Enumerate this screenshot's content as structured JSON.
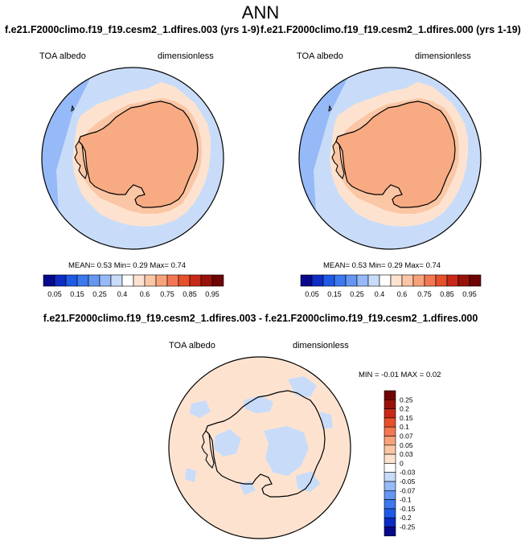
{
  "figure": {
    "title": "ANN"
  },
  "panels": [
    {
      "case_title": "f.e21.F2000climo.f19_f19.cesm2_1.dfires.003 (yrs 1-9)",
      "variable": "TOA albedo",
      "units": "dimensionless",
      "stats": {
        "mean_label": "MEAN=",
        "mean": "0.53",
        "min_label": "Min=",
        "min": "0.29",
        "max_label": "Max=",
        "max": "0.74"
      }
    },
    {
      "case_title": "f.e21.F2000climo.f19_f19.cesm2_1.dfires.000 (yrs 1-19)",
      "variable": "TOA albedo",
      "units": "dimensionless",
      "stats": {
        "mean_label": "MEAN=",
        "mean": "0.53",
        "min_label": "Min=",
        "min": "0.29",
        "max_label": "Max=",
        "max": "0.74"
      }
    }
  ],
  "diff_panel": {
    "title": "f.e21.F2000climo.f19_f19.cesm2_1.dfires.003 - f.e21.F2000climo.f19_f19.cesm2_1.dfires.000",
    "variable": "TOA albedo",
    "units": "dimensionless",
    "stats": {
      "min_label": "MIN =",
      "min": "-0.01",
      "max_label": "MAX =",
      "max": "0.02"
    }
  },
  "colorbars": {
    "absolute": {
      "colors": [
        "#08088c",
        "#0c2cc4",
        "#1e5ae6",
        "#3c78ee",
        "#6496f2",
        "#96b9f7",
        "#c8dcfa",
        "#ffffff",
        "#fde3cf",
        "#fbc6a5",
        "#f8a27b",
        "#f37752",
        "#e6502d",
        "#c82818",
        "#981209",
        "#6e0404"
      ],
      "labels": [
        "0.05",
        "0.15",
        "0.25",
        "0.4",
        "0.6",
        "0.75",
        "0.85",
        "0.95"
      ]
    },
    "difference": {
      "colors": [
        "#08088c",
        "#0c2cc4",
        "#1e5ae6",
        "#3c78ee",
        "#6496f2",
        "#96b9f7",
        "#c8dcfa",
        "#ffffff",
        "#fde3cf",
        "#fbc6a5",
        "#f8a27b",
        "#f37752",
        "#e6502d",
        "#c82818",
        "#981209",
        "#6e0404"
      ],
      "labels": [
        "-0.25",
        "-0.2",
        "-0.15",
        "-0.1",
        "-0.07",
        "-0.05",
        "-0.03",
        "0",
        "0.03",
        "0.05",
        "0.07",
        "0.1",
        "0.15",
        "0.2",
        "0.25"
      ]
    }
  },
  "map_colors": {
    "land_high": "#f8aa82",
    "land_mid": "#fbc6a5",
    "sea_ice": "#fde3cf",
    "ocean": "#c8dcfa",
    "ocean_low": "#96b9f7",
    "diff_positive": "#fde3cf",
    "diff_negative": "#c8dcfa",
    "coastline": "#000000"
  }
}
